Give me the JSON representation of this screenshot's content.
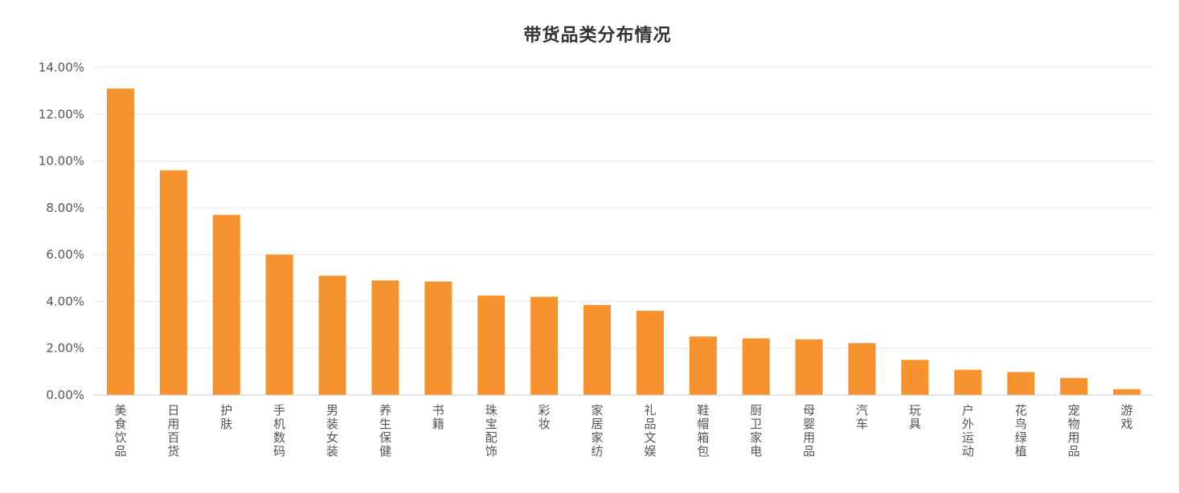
{
  "chart_data": {
    "type": "bar",
    "title": "带货品类分布情况",
    "xlabel": "",
    "ylabel": "",
    "categories": [
      "美食饮品",
      "日用百货",
      "护肤",
      "手机数码",
      "男装女装",
      "养生保健",
      "书籍",
      "珠宝配饰",
      "彩妆",
      "家居家纺",
      "礼品文娱",
      "鞋帽箱包",
      "厨卫家电",
      "母婴用品",
      "汽车",
      "玩具",
      "户外运动",
      "花鸟绿植",
      "宠物用品",
      "游戏"
    ],
    "values": [
      13.1,
      9.6,
      7.7,
      6.0,
      5.1,
      4.9,
      4.85,
      4.25,
      4.2,
      3.85,
      3.6,
      2.5,
      2.42,
      2.38,
      2.22,
      1.5,
      1.08,
      0.98,
      0.73,
      0.25
    ],
    "ylim": [
      0,
      14
    ],
    "yticks": [
      "0.00%",
      "2.00%",
      "4.00%",
      "6.00%",
      "8.00%",
      "10.00%",
      "12.00%",
      "14.00%"
    ],
    "grid": true,
    "legend": "none",
    "bar_color": "#F7932E",
    "grid_color": "#e6e6e6",
    "axis_color": "#cccccc",
    "text_color": "#555555"
  }
}
